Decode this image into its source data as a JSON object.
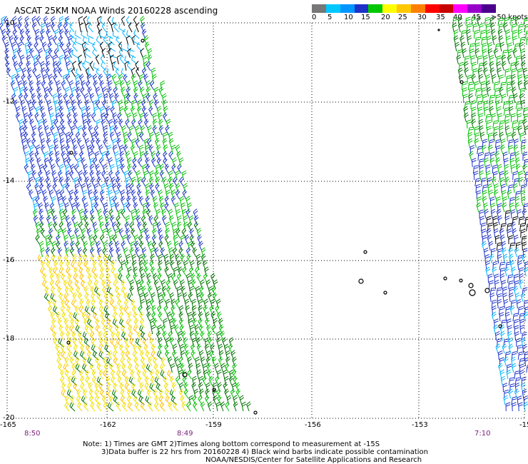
{
  "title": "ASCAT 25KM NOAA Winds 20160228 ascending",
  "speed_scale": {
    "colors": [
      "#777777",
      "#00c8ff",
      "#0096ff",
      "#1e32c8",
      "#00c800",
      "#ffff00",
      "#ffc800",
      "#ff8000",
      "#ff0000",
      "#c80000",
      "#ff00ff",
      "#9600c8",
      "#4b008c"
    ],
    "labels": [
      "0",
      "5",
      "10",
      "15",
      "20",
      "25",
      "30",
      "35",
      "40",
      "45",
      ">50 knots"
    ]
  },
  "map": {
    "longitude_ticks": [
      "-165",
      "-162",
      "-159",
      "-156",
      "-153",
      "-15"
    ],
    "latitude_ticks": [
      "-12",
      "-14",
      "-16",
      "-18",
      "-20"
    ],
    "top_latitude_label": "-10",
    "pass_times": [
      "8:50",
      "8:49",
      "7:10"
    ],
    "wind_colors": {
      "light": "#00b4ff",
      "blue": "#1e32c8",
      "green": "#00c000",
      "dark_green": "#007000",
      "yellow": "#f0e000",
      "orange": "#ffc000",
      "contaminated": "#000000",
      "island": "#000000"
    }
  },
  "notes": {
    "line1": "Note: 1) Times are GMT 2)Times along bottom correspond to measurement at -15S",
    "line2": "3)Data buffer is 22 hrs from 20160228 4) Black wind barbs indicate possible contamination",
    "line3": "NOAA/NESDIS/Center for Satellite Applications and Research"
  }
}
